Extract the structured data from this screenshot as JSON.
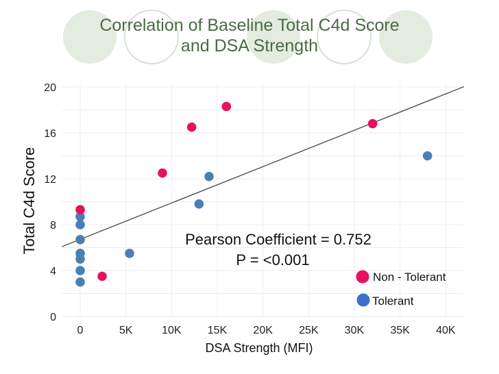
{
  "slide": {
    "title_line1": "Correlation of Baseline Total C4d Score",
    "title_line2": "and DSA Strength",
    "title_color": "#4a6b45",
    "decoration": {
      "circle_fill": "#e4ecdf",
      "circle_outline": "#d6e0d0",
      "circles": [
        "filled",
        "outline",
        "filled",
        "outline",
        "filled"
      ]
    }
  },
  "chart_data": {
    "type": "scatter",
    "title": "Correlation of Baseline Total C4d Score and DSA Strength",
    "xlabel": "DSA Strength (MFI)",
    "ylabel": "Total C4d Score",
    "xlim": [
      -2000,
      42000
    ],
    "ylim": [
      0,
      20
    ],
    "x_ticks": [
      0,
      5000,
      10000,
      15000,
      20000,
      25000,
      30000,
      35000,
      40000
    ],
    "x_tick_labels": [
      "0",
      "5K",
      "10K",
      "15K",
      "20K",
      "25K",
      "30K",
      "35K",
      "40K"
    ],
    "y_ticks": [
      0,
      4,
      8,
      12,
      16,
      20
    ],
    "y_tick_labels": [
      "0",
      "4",
      "8",
      "12",
      "16",
      "20"
    ],
    "y_minor_grid": [
      2,
      6,
      10,
      14,
      18
    ],
    "grid": true,
    "legend_position": "bottom-right",
    "series": [
      {
        "name": "Non - Tolerant",
        "color": "#e8115f",
        "legend_color": "#e8115f",
        "points": [
          {
            "x": 0,
            "y": 9.3
          },
          {
            "x": 2400,
            "y": 3.5
          },
          {
            "x": 9000,
            "y": 12.5
          },
          {
            "x": 12200,
            "y": 16.5
          },
          {
            "x": 16000,
            "y": 18.3
          },
          {
            "x": 32000,
            "y": 16.8
          }
        ]
      },
      {
        "name": "Tolerant",
        "color": "#4a7fb5",
        "legend_color": "#3d6fcf",
        "points": [
          {
            "x": 0,
            "y": 8.7
          },
          {
            "x": 0,
            "y": 8.0
          },
          {
            "x": 0,
            "y": 6.7
          },
          {
            "x": 0,
            "y": 5.5
          },
          {
            "x": 0,
            "y": 5.0
          },
          {
            "x": 0,
            "y": 4.0
          },
          {
            "x": 0,
            "y": 3.0
          },
          {
            "x": 5400,
            "y": 5.5
          },
          {
            "x": 13000,
            "y": 9.8
          },
          {
            "x": 14100,
            "y": 12.2
          },
          {
            "x": 38000,
            "y": 14.0
          }
        ]
      }
    ],
    "trendline": {
      "type": "linear",
      "intercept": 6.72,
      "slope_per_1000": 0.317,
      "x_range": [
        -2000,
        42000
      ],
      "color": "#444444"
    },
    "annotations": [
      "Pearson Coefficient = 0.752",
      "P = <0.001"
    ]
  }
}
